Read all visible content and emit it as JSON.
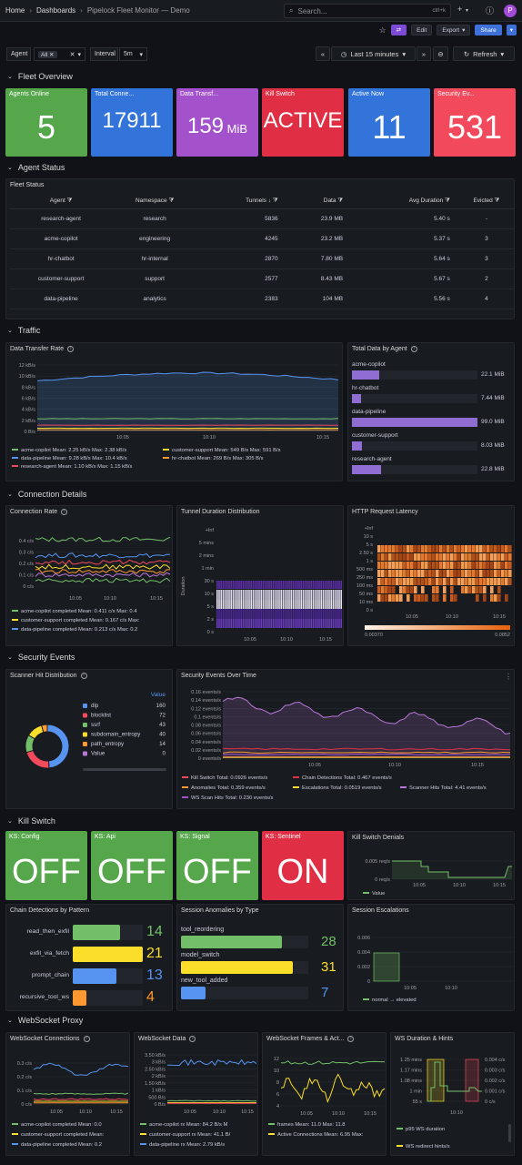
{
  "nav": {
    "home": "Home",
    "dashboards": "Dashboards",
    "current": "Pipelock Fleet Monitor — Demo",
    "search_placeholder": "Search...",
    "shortcut": "ctrl+k",
    "plus": "+",
    "avatar": "P"
  },
  "actions": {
    "edit": "Edit",
    "export": "Export",
    "share": "Share"
  },
  "vars": {
    "agent_label": "Agent",
    "agent_value": "All",
    "interval_label": "Interval",
    "interval_value": "5m"
  },
  "time": {
    "range": "Last 15 minutes",
    "refresh": "Refresh"
  },
  "rows": {
    "fleet": "Fleet Overview",
    "agent_status": "Agent Status",
    "traffic": "Traffic",
    "conn": "Connection Details",
    "security": "Security Events",
    "kill": "Kill Switch",
    "ws": "WebSocket Proxy"
  },
  "stats": [
    {
      "title": "Agents Online",
      "value": "5",
      "color": "#56a64b"
    },
    {
      "title": "Total Conne...",
      "value": "17911",
      "color": "#3274d9"
    },
    {
      "title": "Data Transf...",
      "value": "159",
      "unit": "MiB",
      "color": "#a352cc"
    },
    {
      "title": "Kill Switch",
      "value": "ACTIVE",
      "color": "#e02f44"
    },
    {
      "title": "Active Now",
      "value": "11",
      "color": "#3274d9"
    },
    {
      "title": "Security Ev...",
      "value": "531",
      "color": "#f2495c"
    }
  ],
  "fleet_status": {
    "title": "Fleet Status",
    "headers": [
      "Agent",
      "Namespace",
      "Tunnels",
      "Data",
      "Avg Duration",
      "Evicted"
    ],
    "rows": [
      [
        "research-agent",
        "research",
        "5836",
        "23.9 MB",
        "5.40 s",
        "-"
      ],
      [
        "acme-copilot",
        "engineering",
        "4245",
        "23.2 MB",
        "5.37 s",
        "3"
      ],
      [
        "hr-chatbot",
        "hr-internal",
        "2870",
        "7.80 MB",
        "5.64 s",
        "3"
      ],
      [
        "customer-support",
        "support",
        "2577",
        "8.43 MB",
        "5.67 s",
        "2"
      ],
      [
        "data-pipeline",
        "analytics",
        "2383",
        "104 MB",
        "5.56 s",
        "4"
      ]
    ]
  },
  "data_rate": {
    "title": "Data Transfer Rate",
    "yticks": [
      "12 kB/s",
      "10 kB/s",
      "8 kB/s",
      "6 kB/s",
      "4 kB/s",
      "2 kB/s",
      "0 B/s"
    ],
    "xticks": [
      "10:05",
      "10:10",
      "10:15"
    ],
    "legend": [
      {
        "name": "acme-copilot",
        "stats": "Mean: 2.25 kB/s  Max: 2.38 kB/s",
        "color": "#73bf69"
      },
      {
        "name": "customer-support",
        "stats": "Mean: 549 B/s  Max: 591 B/s",
        "color": "#fade2a"
      },
      {
        "name": "data-pipeline",
        "stats": "Mean: 9.28 kB/s  Max: 10.4 kB/s",
        "color": "#5794f2"
      },
      {
        "name": "hr-chatbot",
        "stats": "Mean: 269 B/s  Max: 305 B/s",
        "color": "#ff9830"
      },
      {
        "name": "research-agent",
        "stats": "Mean: 1.10 kB/s  Max: 1.15 kB/s",
        "color": "#f2495c"
      }
    ]
  },
  "total_data": {
    "title": "Total Data by Agent",
    "items": [
      {
        "name": "acme-copilot",
        "value": "22.1 MiB",
        "frac": 0.22
      },
      {
        "name": "hr-chatbot",
        "value": "7.44 MiB",
        "frac": 0.075
      },
      {
        "name": "data-pipeline",
        "value": "99.0 MiB",
        "frac": 1.0
      },
      {
        "name": "customer-support",
        "value": "8.03 MiB",
        "frac": 0.08
      },
      {
        "name": "research-agent",
        "value": "22.8 MiB",
        "frac": 0.23
      }
    ]
  },
  "conn_rate": {
    "title": "Connection Rate",
    "yticks": [
      "0.4 c/s",
      "0.3 c/s",
      "0.2 c/s",
      "0.1 c/s",
      "0 c/s"
    ],
    "xticks": [
      "10:05",
      "10:10",
      "10:15"
    ],
    "legend": [
      {
        "name": "acme-copilot completed",
        "stats": "Mean: 0.411 c/s  Max: 0.4",
        "color": "#73bf69"
      },
      {
        "name": "customer-support completed",
        "stats": "Mean: 0.167 c/s  Max:",
        "color": "#fade2a"
      },
      {
        "name": "data-pipeline completed",
        "stats": "Mean: 0.213 c/s  Max: 0.2",
        "color": "#5794f2"
      }
    ]
  },
  "tunnel": {
    "title": "Tunnel Duration Distribution",
    "ylabel": "Duration",
    "yticks": [
      "+Inf",
      "5 mins",
      "2 mins",
      "1 min",
      "30 s",
      "10 s",
      "5 s",
      "2 s",
      "0 s"
    ],
    "xticks": [
      "10:05",
      "10:10",
      "10:15"
    ]
  },
  "latency": {
    "title": "HTTP Request Latency",
    "yticks": [
      "+Inf",
      "10 s",
      "5 s",
      "2.50 s",
      "1 s",
      "500 ms",
      "250 ms",
      "100 ms",
      "50 ms",
      "10 ms",
      "0 s"
    ],
    "xticks": [
      "10:05",
      "10:10",
      "10:15"
    ],
    "scale_min": "0.00370",
    "scale_max": "0.0852"
  },
  "scanner": {
    "title": "Scanner Hit Distribution",
    "value_header": "Value",
    "items": [
      {
        "name": "dlp",
        "value": "160",
        "color": "#5794f2"
      },
      {
        "name": "blocklist",
        "value": "72",
        "color": "#f2495c"
      },
      {
        "name": "ssrf",
        "value": "43",
        "color": "#73bf69"
      },
      {
        "name": "subdomain_entropy",
        "value": "40",
        "color": "#fade2a"
      },
      {
        "name": "path_entropy",
        "value": "14",
        "color": "#ff9830"
      },
      {
        "name": "Value",
        "value": "0",
        "color": "#b877d9"
      }
    ]
  },
  "sec_time": {
    "title": "Security Events Over Time",
    "yticks": [
      "0.16 events/s",
      "0.14 events/s",
      "0.12 events/s",
      "0.1 events/s",
      "0.08 events/s",
      "0.06 events/s",
      "0.04 events/s",
      "0.02 events/s",
      "0 events/s"
    ],
    "xticks": [
      "10:05",
      "10:10",
      "10:15"
    ],
    "legend": [
      {
        "name": "Kill Switch",
        "stats": "Total: 0.0926 events/s",
        "color": "#f2495c"
      },
      {
        "name": "Chain Detections",
        "stats": "Total: 0.467 events/s",
        "color": "#e02f44"
      },
      {
        "name": "Anomalies",
        "stats": "Total: 0.359 events/s",
        "color": "#ff9830"
      },
      {
        "name": "Escalations",
        "stats": "Total: 0.0519 events/s",
        "color": "#fade2a"
      },
      {
        "name": "Scanner Hits",
        "stats": "Total: 4.41 events/s",
        "color": "#b877d9"
      },
      {
        "name": "WS Scan Hits",
        "stats": "Total: 0.230 events/s",
        "color": "#a352cc"
      }
    ]
  },
  "ks": [
    {
      "title": "KS: Config",
      "value": "OFF",
      "color": "#56a64b"
    },
    {
      "title": "KS: Api",
      "value": "OFF",
      "color": "#56a64b"
    },
    {
      "title": "KS: Signal",
      "value": "OFF",
      "color": "#56a64b"
    },
    {
      "title": "KS: Sentinel",
      "value": "ON",
      "color": "#e02f44"
    }
  ],
  "ks_denials": {
    "title": "Kill Switch Denials",
    "yticks": [
      "0.005 req/s",
      "0 req/s"
    ],
    "xticks": [
      "10:05",
      "10:10",
      "10:15"
    ],
    "legend": "Value"
  },
  "chain": {
    "title": "Chain Detections by Pattern",
    "items": [
      {
        "name": "read_then_exfil",
        "value": "14",
        "color": "#73bf69",
        "frac": 0.67
      },
      {
        "name": "exfil_via_fetch",
        "value": "21",
        "color": "#fade2a",
        "frac": 1.0
      },
      {
        "name": "prompt_chain",
        "value": "13",
        "color": "#5794f2",
        "frac": 0.62
      },
      {
        "name": "recursive_tool_ws",
        "value": "4",
        "color": "#ff9830",
        "frac": 0.19
      }
    ]
  },
  "anomalies": {
    "title": "Session Anomalies by Type",
    "items": [
      {
        "name": "tool_reordering",
        "value": "28",
        "color": "#73bf69",
        "frac": 0.9
      },
      {
        "name": "model_switch",
        "value": "31",
        "color": "#fade2a",
        "frac": 1.0
      },
      {
        "name": "new_tool_added",
        "value": "7",
        "color": "#5794f2",
        "frac": 0.22
      }
    ]
  },
  "escal": {
    "title": "Session Escalations",
    "yticks": [
      "0.006",
      "0.004",
      "0.002",
      "0"
    ],
    "xticks": [
      "10:05",
      "10:10"
    ],
    "legend": "normal → elevated"
  },
  "ws_conn": {
    "title": "WebSocket Connections",
    "yticks": [
      "0.3 c/s",
      "0.2 c/s",
      "0.1 c/s",
      "0 c/s"
    ],
    "xticks": [
      "10:05",
      "10:10",
      "10:15"
    ],
    "legend": [
      {
        "name": "acme-copilot completed",
        "stats": "Mean: 0.0",
        "color": "#73bf69"
      },
      {
        "name": "customer-support completed",
        "stats": "Mean:",
        "color": "#fade2a"
      },
      {
        "name": "data-pipeline completed",
        "stats": "Mean: 0.2",
        "color": "#5794f2"
      }
    ]
  },
  "ws_data": {
    "title": "WebSocket Data",
    "yticks": [
      "3.50 kB/s",
      "3 kB/s",
      "2.50 kB/s",
      "2 kB/s",
      "1.50 kB/s",
      "1 kB/s",
      "500 B/s",
      "0 B/s"
    ],
    "xticks": [
      "10:05",
      "10:10",
      "10:15"
    ],
    "legend": [
      {
        "name": "acme-copilot rx",
        "stats": "Mean: 84.2 B/s  M",
        "color": "#73bf69"
      },
      {
        "name": "customer-support rx",
        "stats": "Mean: 41.1 B/",
        "color": "#fade2a"
      },
      {
        "name": "data-pipeline rx",
        "stats": "Mean: 2.79 kB/s",
        "color": "#5794f2"
      }
    ]
  },
  "ws_frames": {
    "title": "WebSocket Frames & Act...",
    "yticks": [
      "12",
      "10",
      "8",
      "6",
      "4"
    ],
    "xticks": [
      "10:05",
      "10:10",
      "10:15"
    ],
    "legend": [
      {
        "name": "frames",
        "stats": "Mean: 11.0  Max: 11.8",
        "color": "#73bf69"
      },
      {
        "name": "Active Connections",
        "stats": "Mean: 6.95  Max:",
        "color": "#fade2a"
      }
    ]
  },
  "ws_dur": {
    "title": "WS Duration & Hints",
    "yleft": [
      "1.25 mins",
      "1.17 mins",
      "1.08 mins",
      "1 min",
      "55 s"
    ],
    "yright": [
      "0.004 c/s",
      "0.003 c/s",
      "0.002 c/s",
      "0.001 c/s",
      "0 c/s"
    ],
    "xticks": [
      "10:10"
    ],
    "legend": [
      {
        "name": "p95 WS duration",
        "color": "#73bf69"
      },
      {
        "name": "WS redirect hints/s",
        "color": "#fade2a"
      }
    ]
  }
}
